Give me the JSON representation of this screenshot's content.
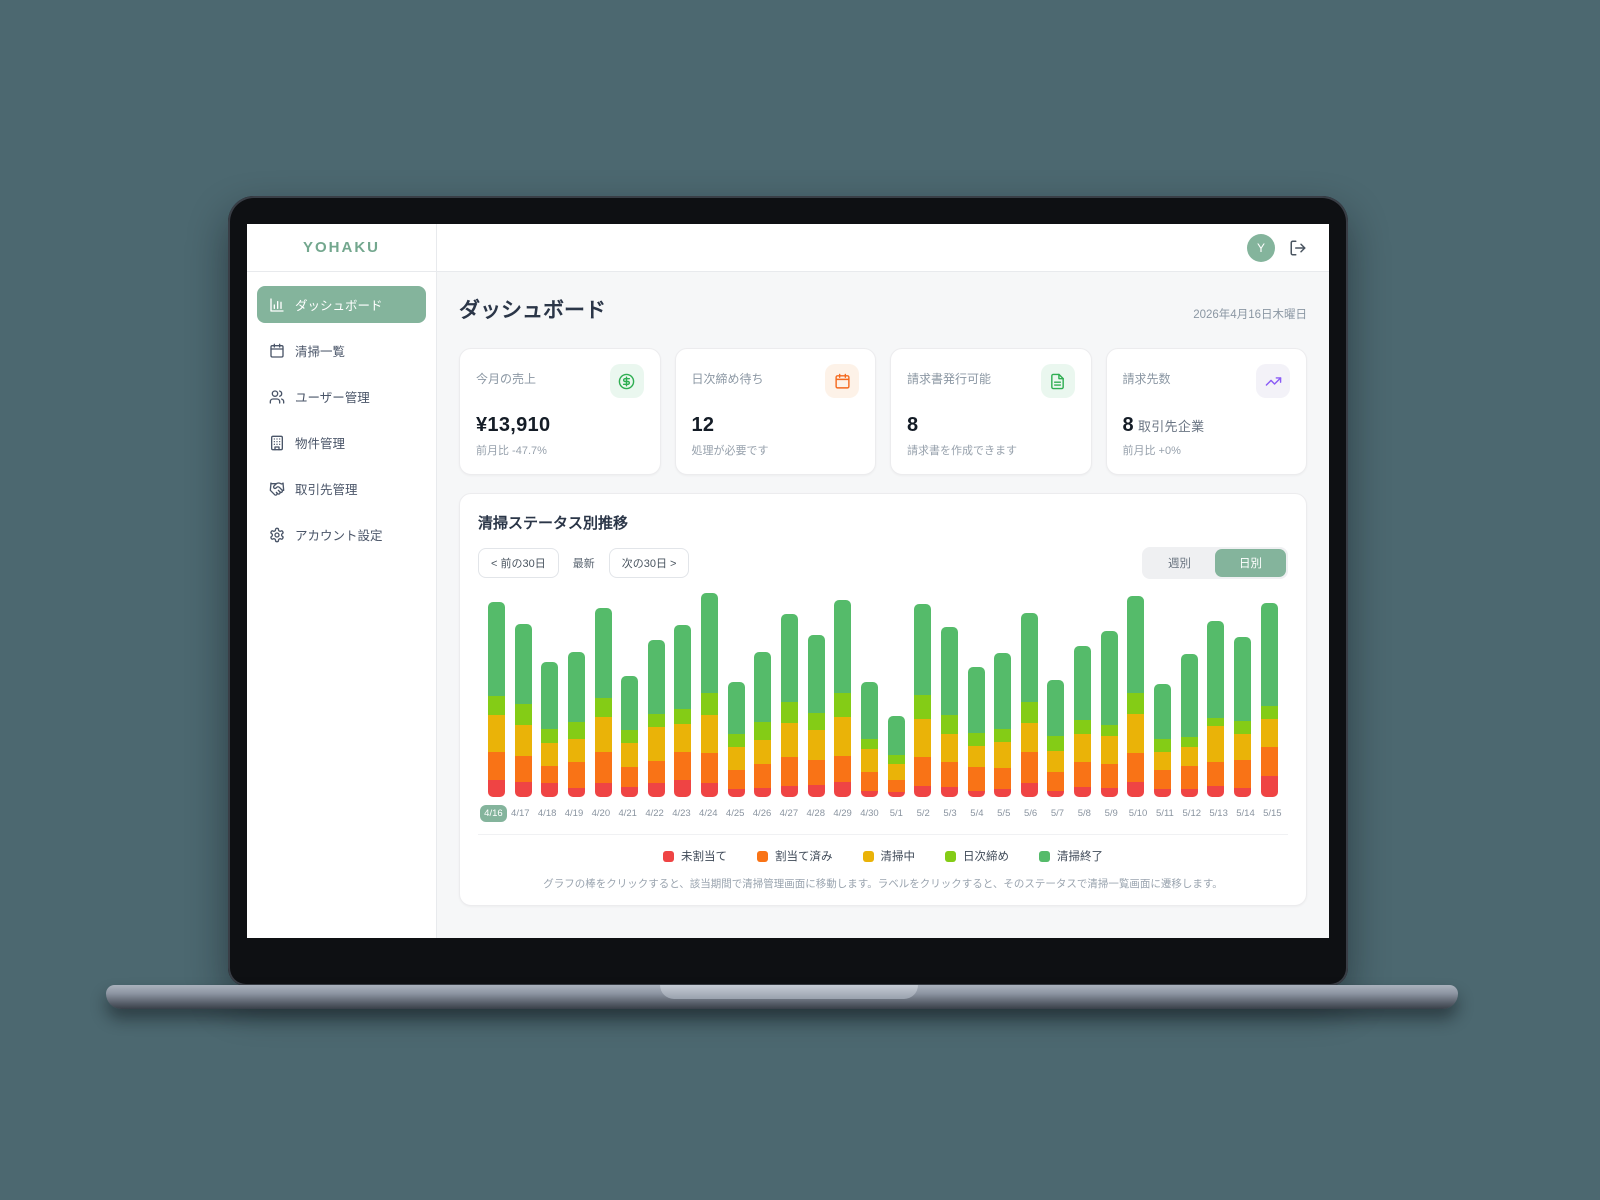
{
  "app": {
    "brand": "YOHAKU",
    "background_color": "#4c6870",
    "accent_color": "#84b49c"
  },
  "sidebar": {
    "items": [
      {
        "label": "ダッシュボード",
        "icon": "dashboard-icon",
        "active": true
      },
      {
        "label": "清掃一覧",
        "icon": "calendar-icon",
        "active": false
      },
      {
        "label": "ユーザー管理",
        "icon": "users-icon",
        "active": false
      },
      {
        "label": "物件管理",
        "icon": "building-icon",
        "active": false
      },
      {
        "label": "取引先管理",
        "icon": "handshake-icon",
        "active": false
      },
      {
        "label": "アカウント設定",
        "icon": "gear-icon",
        "active": false
      }
    ]
  },
  "header": {
    "avatar_initial": "Y"
  },
  "page": {
    "title": "ダッシュボード",
    "date": "2026年4月16日木曜日"
  },
  "stats": [
    {
      "label": "今月の売上",
      "icon": "dollar-circle-icon",
      "icon_color": "#2fae52",
      "icon_bg": "#eaf7ef",
      "value": "¥13,910",
      "suffix": "",
      "sub": "前月比 -47.7%"
    },
    {
      "label": "日次締め待ち",
      "icon": "calendar-alert-icon",
      "icon_color": "#f46a1f",
      "icon_bg": "#fdf2e8",
      "value": "12",
      "suffix": "",
      "sub": "処理が必要です"
    },
    {
      "label": "請求書発行可能",
      "icon": "file-text-icon",
      "icon_color": "#2fae52",
      "icon_bg": "#eaf7ef",
      "value": "8",
      "suffix": "",
      "sub": "請求書を作成できます"
    },
    {
      "label": "請求先数",
      "icon": "trending-up-icon",
      "icon_color": "#8b5cf6",
      "icon_bg": "#f3f2f8",
      "value": "8",
      "suffix": "取引先企業",
      "sub": "前月比 +0%"
    }
  ],
  "chart": {
    "title": "清掃ステータス別推移",
    "controls": {
      "prev": "< 前の30日",
      "latest": "最新",
      "next": "次の30日 >",
      "week": "週別",
      "day": "日別",
      "active_mode": "日別"
    },
    "selected_date": "4/16",
    "note": "グラフの棒をクリックすると、該当期間で清掃管理画面に移動します。ラベルをクリックすると、そのステータスで清掃一覧画面に遷移します。"
  },
  "chart_data": {
    "type": "bar",
    "stacked": true,
    "grid": false,
    "legend_position": "bottom",
    "ylim": [
      0,
      200
    ],
    "categories": [
      "4/16",
      "4/17",
      "4/18",
      "4/19",
      "4/20",
      "4/21",
      "4/22",
      "4/23",
      "4/24",
      "4/25",
      "4/26",
      "4/27",
      "4/28",
      "4/29",
      "4/30",
      "5/1",
      "5/2",
      "5/3",
      "5/4",
      "5/5",
      "5/6",
      "5/7",
      "5/8",
      "5/9",
      "5/10",
      "5/11",
      "5/12",
      "5/13",
      "5/14",
      "5/15"
    ],
    "series": [
      {
        "name": "未割当て",
        "color": "#ef4444",
        "values": [
          16,
          14,
          13,
          9,
          13,
          10,
          13,
          16,
          13,
          8,
          9,
          11,
          12,
          14,
          6,
          5,
          11,
          10,
          6,
          8,
          13,
          6,
          10,
          9,
          14,
          8,
          8,
          11,
          9,
          20
        ]
      },
      {
        "name": "割当て済み",
        "color": "#f97316",
        "values": [
          27,
          25,
          17,
          25,
          30,
          19,
          22,
          27,
          29,
          18,
          23,
          27,
          24,
          25,
          18,
          11,
          27,
          24,
          23,
          20,
          30,
          18,
          24,
          23,
          28,
          18,
          22,
          23,
          27,
          28
        ]
      },
      {
        "name": "清掃中",
        "color": "#eab308",
        "values": [
          36,
          30,
          22,
          22,
          34,
          23,
          32,
          27,
          37,
          22,
          23,
          33,
          28,
          38,
          22,
          16,
          37,
          27,
          20,
          25,
          28,
          20,
          27,
          27,
          38,
          17,
          18,
          34,
          25,
          27
        ]
      },
      {
        "name": "日次締め",
        "color": "#84cc16",
        "values": [
          18,
          20,
          13,
          16,
          18,
          12,
          13,
          15,
          21,
          13,
          17,
          20,
          17,
          23,
          10,
          8,
          23,
          18,
          13,
          12,
          20,
          15,
          13,
          10,
          20,
          13,
          10,
          8,
          12,
          12
        ]
      },
      {
        "name": "清掃終了",
        "color": "#55bb6a",
        "values": [
          90,
          77,
          65,
          67,
          87,
          52,
          71,
          80,
          96,
          50,
          67,
          85,
          75,
          89,
          55,
          38,
          87,
          84,
          63,
          73,
          86,
          53,
          71,
          91,
          93,
          53,
          79,
          93,
          81,
          99
        ]
      }
    ]
  }
}
